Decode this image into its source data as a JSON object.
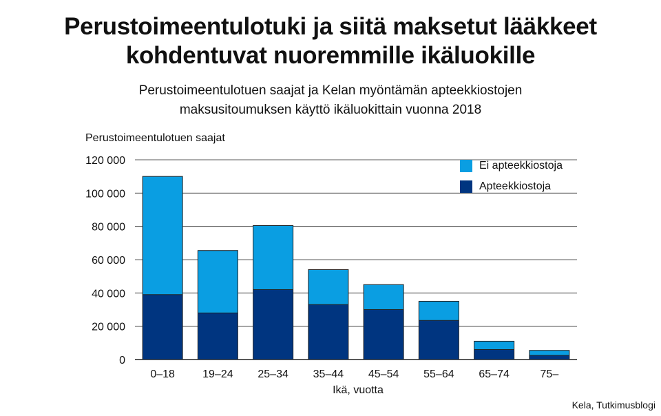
{
  "title_line1": "Perustoimeentulotuki ja siitä maksetut lääkkeet",
  "title_line2": "kohdentuvat nuoremmille ikäluokille",
  "subtitle_line1": "Perustoimeentulotuen saajat ja Kelan myöntämän apteekkiostojen",
  "subtitle_line2": "maksusitoumuksen käyttö ikäluokittain vuonna 2018",
  "source": "Kela, Tutkimusblogi",
  "colors": {
    "light": "#0a9ee2",
    "dark": "#003580",
    "grid": "#222222"
  },
  "chart_data": {
    "type": "bar",
    "stacked": true,
    "ylabel": "Perustoimeentulotuen saajat",
    "xlabel": "Ikä, vuotta",
    "categories": [
      "0–18",
      "19–24",
      "25–34",
      "35–44",
      "45–54",
      "55–64",
      "65–74",
      "75–"
    ],
    "ylim": [
      0,
      120000
    ],
    "yticks": [
      0,
      20000,
      40000,
      60000,
      80000,
      100000,
      120000
    ],
    "ytick_labels": [
      "0",
      "20 000",
      "40 000",
      "60 000",
      "80 000",
      "100 000",
      "120 000"
    ],
    "grid": true,
    "legend_position": "top-right",
    "series": [
      {
        "name": "Apteekkiostoja",
        "color": "#003580",
        "values": [
          39000,
          28000,
          42000,
          33000,
          30000,
          23500,
          6000,
          2500
        ]
      },
      {
        "name": "Ei apteekkiostoja",
        "color": "#0a9ee2",
        "values": [
          71000,
          37500,
          38500,
          21000,
          15000,
          11500,
          5000,
          3000
        ]
      }
    ]
  }
}
